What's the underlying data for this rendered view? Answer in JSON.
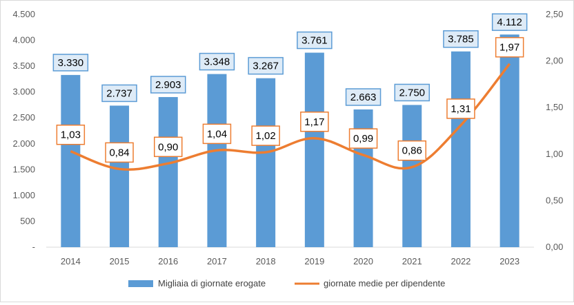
{
  "chart_data": {
    "type": "bar",
    "categories": [
      "2014",
      "2015",
      "2016",
      "2017",
      "2018",
      "2019",
      "2020",
      "2021",
      "2022",
      "2023"
    ],
    "series": [
      {
        "name": "Migliaia di giornate erogate",
        "type": "bar",
        "axis": "left",
        "color": "#5B9BD5",
        "values": [
          3330,
          2737,
          2903,
          3348,
          3267,
          3761,
          2663,
          2750,
          3785,
          4112
        ],
        "labels": [
          "3.330",
          "2.737",
          "2.903",
          "3.348",
          "3.267",
          "3.761",
          "2.663",
          "2.750",
          "3.785",
          "4.112"
        ]
      },
      {
        "name": "giornate medie per dipendente",
        "type": "line",
        "axis": "right",
        "color": "#ED7D31",
        "values": [
          1.03,
          0.84,
          0.9,
          1.04,
          1.02,
          1.17,
          0.99,
          0.86,
          1.31,
          1.97
        ],
        "labels": [
          "1,03",
          "0,84",
          "0,90",
          "1,04",
          "1,02",
          "1,17",
          "0,99",
          "0,86",
          "1,31",
          "1,97"
        ]
      }
    ],
    "y_left": {
      "min": 0,
      "max": 4500,
      "ticks": [
        0,
        500,
        1000,
        1500,
        2000,
        2500,
        3000,
        3500,
        4000,
        4500
      ],
      "tick_labels": [
        "-",
        "500",
        "1.000",
        "1.500",
        "2.000",
        "2.500",
        "3.000",
        "3.500",
        "4.000",
        "4.500"
      ]
    },
    "y_right": {
      "min": 0,
      "max": 2.5,
      "ticks": [
        0,
        0.5,
        1.0,
        1.5,
        2.0,
        2.5
      ],
      "tick_labels": [
        "0,00",
        "0,50",
        "1,00",
        "1,50",
        "2,00",
        "2,50"
      ]
    },
    "title": "",
    "xlabel": "",
    "ylabel": "",
    "grid": false,
    "legend_position": "bottom"
  }
}
